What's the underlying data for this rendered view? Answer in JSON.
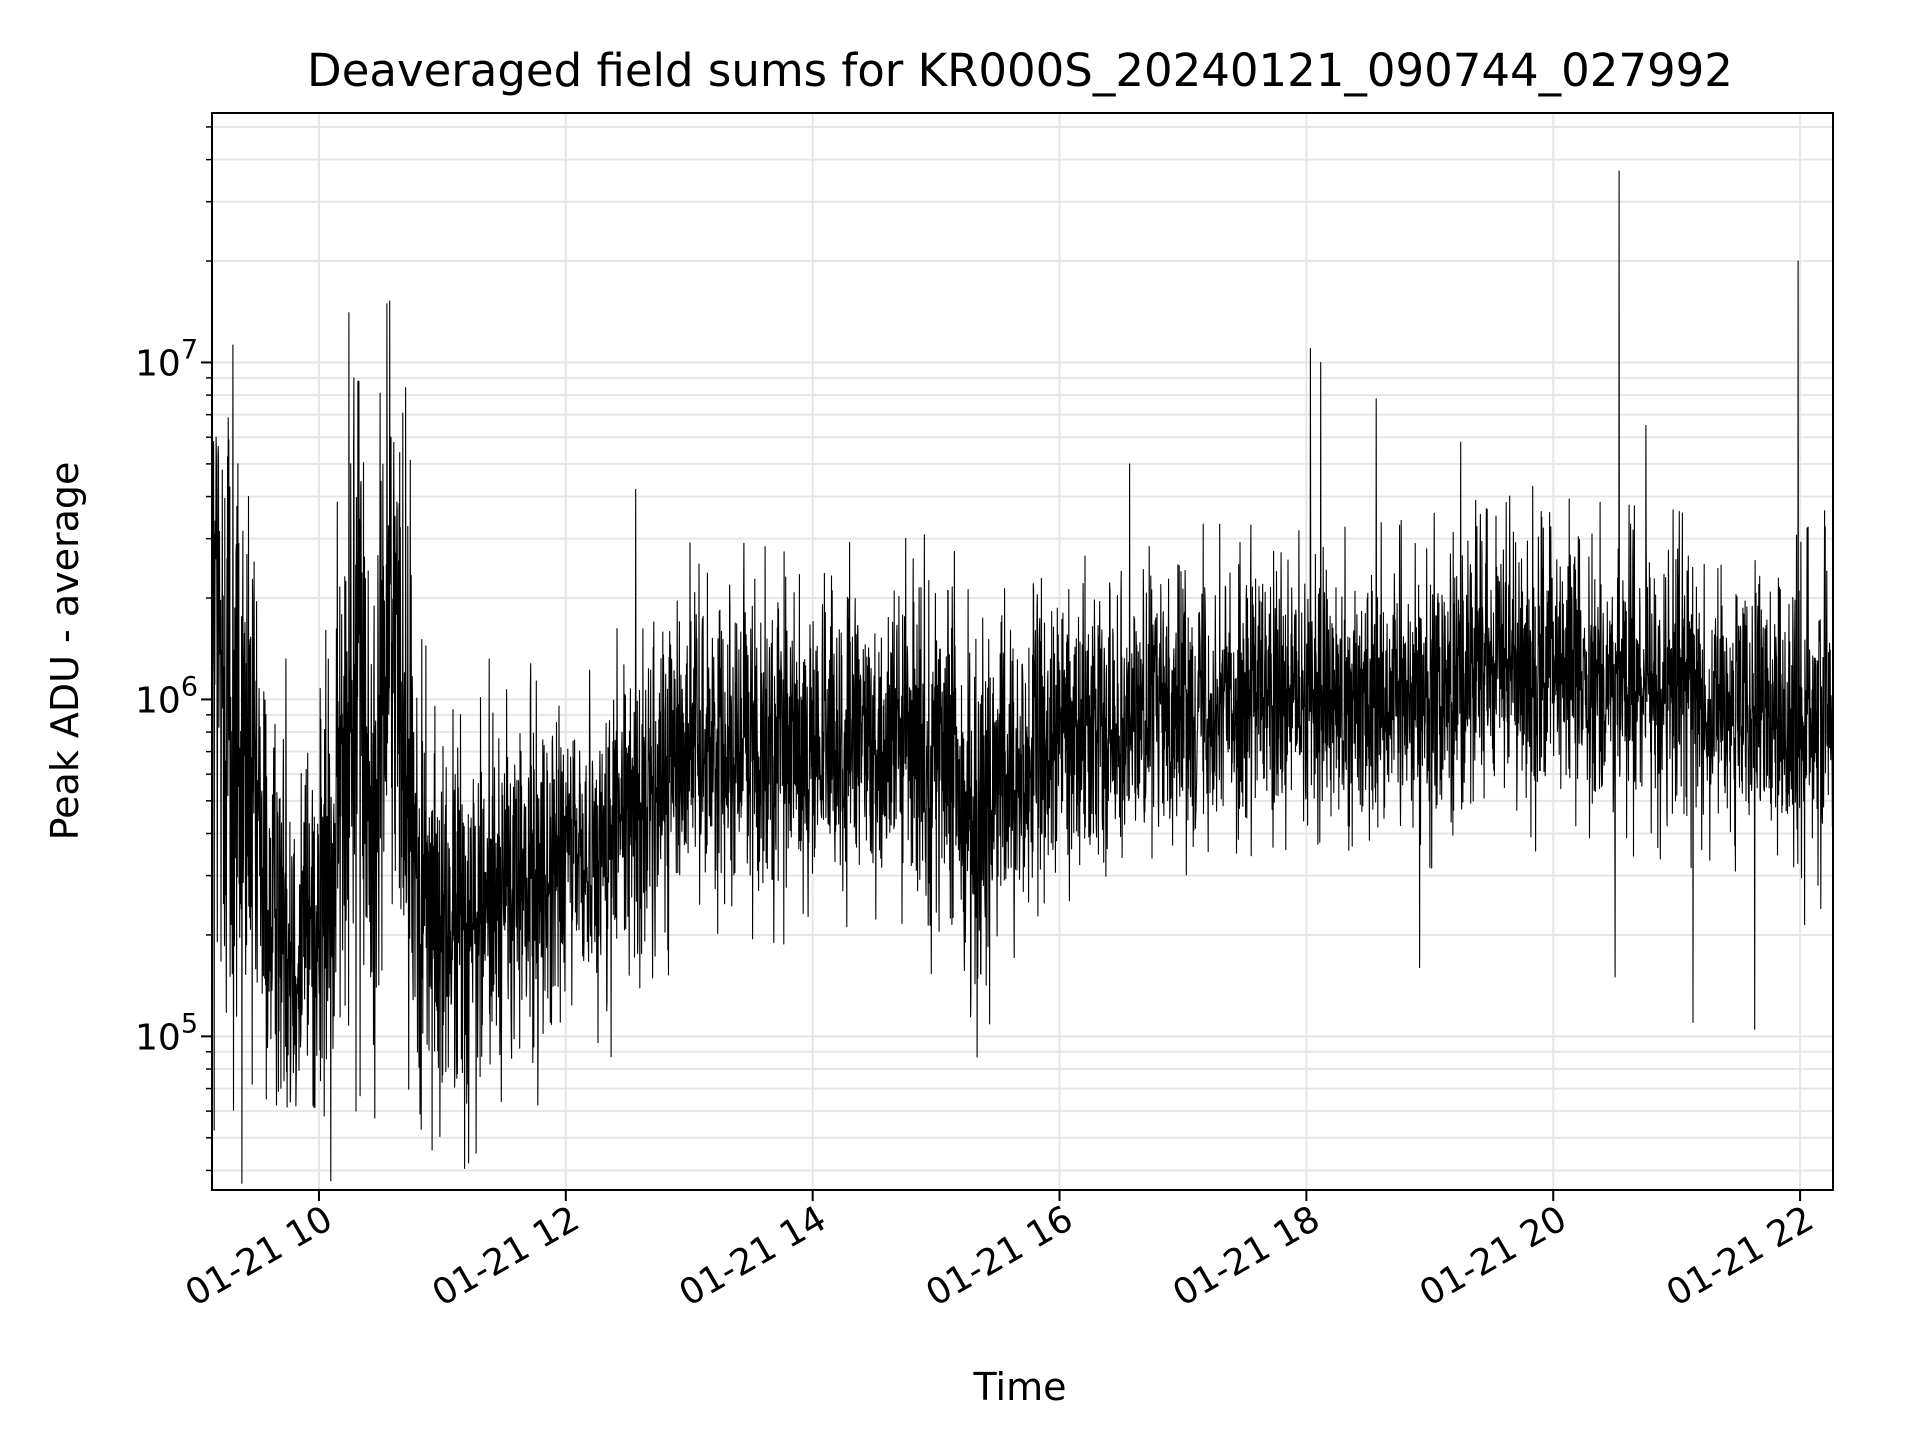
{
  "chart_data": {
    "type": "line",
    "title": "Deaveraged field sums for KR000S_20240121_090744_027992",
    "xlabel": "Time",
    "ylabel": "Peak ADU - average",
    "y_scale": "log",
    "grid": true,
    "line_color": "#000000",
    "grid_color": "#e6e6e6",
    "xlim": [
      "2024-01-21 09:08",
      "2024-01-21 22:16"
    ],
    "ylim": [
      35000,
      55000000
    ],
    "x_ticks": [
      {
        "value": "2024-01-21 10:00",
        "label": "01-21 10"
      },
      {
        "value": "2024-01-21 12:00",
        "label": "01-21 12"
      },
      {
        "value": "2024-01-21 14:00",
        "label": "01-21 14"
      },
      {
        "value": "2024-01-21 16:00",
        "label": "01-21 16"
      },
      {
        "value": "2024-01-21 18:00",
        "label": "01-21 18"
      },
      {
        "value": "2024-01-21 20:00",
        "label": "01-21 20"
      },
      {
        "value": "2024-01-21 22:00",
        "label": "01-21 22"
      }
    ],
    "y_ticks": [
      {
        "value": 100000,
        "base": "10",
        "exp": "5"
      },
      {
        "value": 1000000,
        "base": "10",
        "exp": "6"
      },
      {
        "value": 10000000,
        "base": "10",
        "exp": "7"
      }
    ],
    "series": [
      {
        "x": [
          "2024-01-21 09:08",
          "2024-01-21 09:20",
          "2024-01-21 09:35",
          "2024-01-21 09:50",
          "2024-01-21 10:05",
          "2024-01-21 10:18",
          "2024-01-21 10:25",
          "2024-01-21 10:35",
          "2024-01-21 10:50",
          "2024-01-21 11:00",
          "2024-01-21 11:20",
          "2024-01-21 11:40",
          "2024-01-21 12:00",
          "2024-01-21 12:20",
          "2024-01-21 12:40",
          "2024-01-21 13:00",
          "2024-01-21 13:30",
          "2024-01-21 14:00",
          "2024-01-21 14:30",
          "2024-01-21 15:00",
          "2024-01-21 15:20",
          "2024-01-21 15:40",
          "2024-01-21 16:00",
          "2024-01-21 16:30",
          "2024-01-21 17:00",
          "2024-01-21 17:30",
          "2024-01-21 18:00",
          "2024-01-21 18:30",
          "2024-01-21 19:00",
          "2024-01-21 19:30",
          "2024-01-21 20:00",
          "2024-01-21 20:30",
          "2024-01-21 21:00",
          "2024-01-21 21:30",
          "2024-01-21 22:00",
          "2024-01-21 22:16"
        ],
        "y": [
          1500000,
          800000,
          250000,
          200000,
          250000,
          1500000,
          400000,
          2000000,
          250000,
          200000,
          250000,
          280000,
          330000,
          380000,
          500000,
          800000,
          750000,
          700000,
          750000,
          700000,
          450000,
          600000,
          800000,
          900000,
          1000000,
          1000000,
          950000,
          1000000,
          1050000,
          1300000,
          1200000,
          1150000,
          1100000,
          900000,
          800000,
          1000000
        ],
        "spread": [
          1.1,
          1.1,
          0.6,
          0.6,
          0.65,
          1.0,
          0.7,
          1.0,
          0.6,
          0.6,
          0.55,
          0.55,
          0.45,
          0.45,
          0.5,
          0.45,
          0.45,
          0.45,
          0.45,
          0.5,
          0.55,
          0.5,
          0.4,
          0.4,
          0.4,
          0.4,
          0.4,
          0.4,
          0.4,
          0.45,
          0.4,
          0.4,
          0.4,
          0.4,
          0.45,
          0.45
        ],
        "spikes": [
          {
            "x": "2024-01-21 09:10",
            "y": 6000000
          },
          {
            "x": "2024-01-21 10:17",
            "y": 9000000
          },
          {
            "x": "2024-01-21 10:19",
            "y": 8800000
          },
          {
            "x": "2024-01-21 10:35",
            "y": 6000000
          },
          {
            "x": "2024-01-21 12:34",
            "y": 4200000
          },
          {
            "x": "2024-01-21 16:34",
            "y": 5000000
          },
          {
            "x": "2024-01-21 18:02",
            "y": 11000000
          },
          {
            "x": "2024-01-21 18:07",
            "y": 10000000
          },
          {
            "x": "2024-01-21 18:34",
            "y": 7800000
          },
          {
            "x": "2024-01-21 19:15",
            "y": 5800000
          },
          {
            "x": "2024-01-21 20:32",
            "y": 37000000
          },
          {
            "x": "2024-01-21 20:45",
            "y": 6500000
          },
          {
            "x": "2024-01-21 21:59",
            "y": 20000000
          },
          {
            "x": "2024-01-21 10:18",
            "y": 60000
          },
          {
            "x": "2024-01-21 10:55",
            "y": 46000
          },
          {
            "x": "2024-01-21 12:22",
            "y": 87000
          },
          {
            "x": "2024-01-21 21:08",
            "y": 110000
          },
          {
            "x": "2024-01-21 21:38",
            "y": 105000
          },
          {
            "x": "2024-01-21 20:30",
            "y": 150000
          },
          {
            "x": "2024-01-21 18:55",
            "y": 160000
          }
        ]
      }
    ]
  }
}
